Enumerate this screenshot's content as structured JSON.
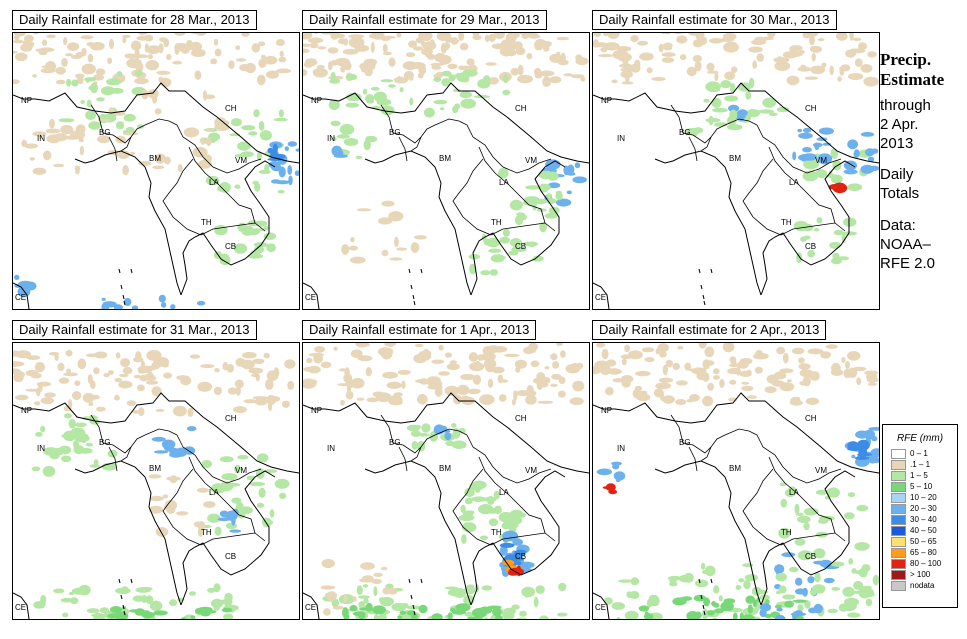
{
  "panels": [
    {
      "title": "Daily Rainfall estimate for  28 Mar., 2013"
    },
    {
      "title": "Daily Rainfall estimate for  29 Mar., 2013"
    },
    {
      "title": "Daily Rainfall estimate for  30 Mar., 2013"
    },
    {
      "title": "Daily Rainfall estimate for  31 Mar., 2013"
    },
    {
      "title": "Daily Rainfall estimate for  1 Apr., 2013"
    },
    {
      "title": "Daily Rainfall estimate for  2 Apr., 2013"
    }
  ],
  "country_labels": {
    "np": "NP",
    "in": "IN",
    "bg": "BG",
    "ch": "CH",
    "bm": "BM",
    "vm": "VM",
    "la": "LA",
    "th": "TH",
    "cb": "CB",
    "ce": "CE"
  },
  "side": {
    "line1": "Precip.",
    "line2": "Estimate",
    "line3": "through",
    "line4": "2 Apr.",
    "line5": "2013",
    "line6": "Daily",
    "line7": "Totals",
    "line8": "Data:",
    "line9": "NOAA–",
    "line10": "RFE 2.0"
  },
  "legend": {
    "title": "RFE (mm)",
    "items": [
      {
        "label": "0 – 1",
        "color": "#ffffff"
      },
      {
        "label": ".1 – 1",
        "color": "#e8d6b8"
      },
      {
        "label": "1 – 5",
        "color": "#b4e6a4"
      },
      {
        "label": "5 – 10",
        "color": "#78d878"
      },
      {
        "label": "10 – 20",
        "color": "#a8d4f4"
      },
      {
        "label": "20 – 30",
        "color": "#6cb0ee"
      },
      {
        "label": "30 – 40",
        "color": "#3c8ce6"
      },
      {
        "label": "40 – 50",
        "color": "#1c5ad8"
      },
      {
        "label": "50 – 65",
        "color": "#ffe070"
      },
      {
        "label": "65 – 80",
        "color": "#ff9c1c"
      },
      {
        "label": "80 – 100",
        "color": "#e02414"
      },
      {
        "label": "> 100",
        "color": "#a01818"
      },
      {
        "label": "nodata",
        "color": "#c8c8c8"
      }
    ]
  }
}
